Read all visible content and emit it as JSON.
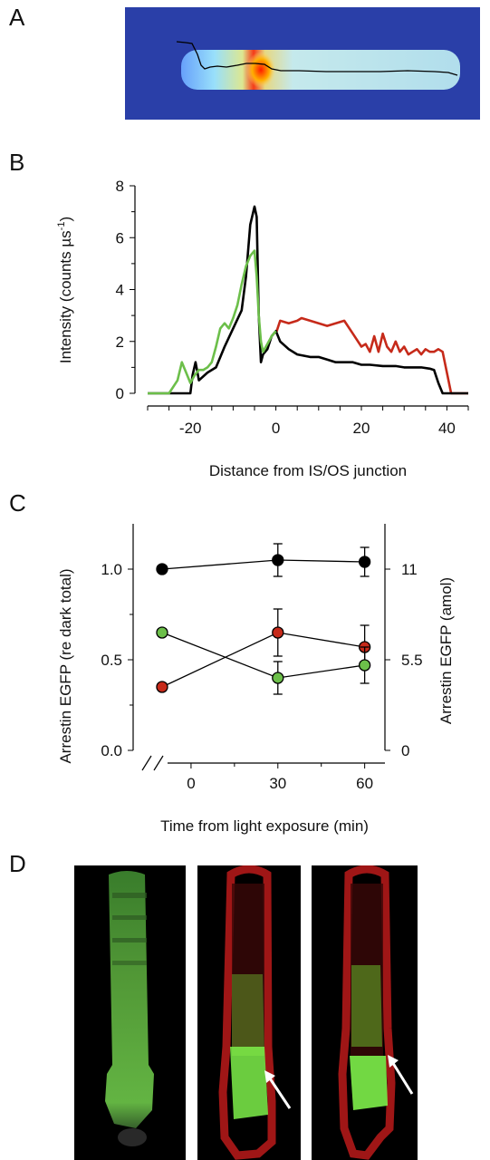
{
  "panels": {
    "a": "A",
    "b": "B",
    "c": "C",
    "d": "D"
  },
  "colors": {
    "black": "#000000",
    "red": "#c62a1a",
    "green": "#6cbf4a",
    "heat_background": "#2a3fa8",
    "micrograph_background": "#000000",
    "membrane_red": "#b01818",
    "arrestin_green": "#7ef04a"
  },
  "chart_data": [
    {
      "panel": "B",
      "type": "line",
      "xlabel": "Distance from IS/OS junction",
      "ylabel": "Intensity (counts µs",
      "ylabel_superscript": "-1",
      "ylabel_close": ")",
      "xlim": [
        -30,
        45
      ],
      "ylim": [
        0,
        8
      ],
      "xticks": [
        -20,
        0,
        20,
        40
      ],
      "yticks": [
        0,
        2,
        4,
        6,
        8
      ],
      "series": [
        {
          "color": "black",
          "x": [
            -30,
            -20,
            -19.5,
            -18.8,
            -18,
            -16,
            -14,
            -12,
            -10,
            -8,
            -7,
            -6,
            -5,
            -4.5,
            -4,
            -3.5,
            -3,
            -2,
            -1,
            0,
            1,
            3,
            5,
            8,
            10,
            12,
            14,
            16,
            18,
            20,
            22,
            25,
            28,
            30,
            32,
            34,
            36,
            37,
            38,
            39,
            40,
            45
          ],
          "y": [
            0,
            0,
            0.7,
            1.2,
            0.5,
            0.8,
            1.0,
            1.8,
            2.5,
            3.2,
            4.5,
            6.5,
            7.2,
            6.8,
            3.0,
            1.2,
            1.5,
            1.7,
            2.2,
            2.4,
            2.0,
            1.7,
            1.5,
            1.4,
            1.4,
            1.3,
            1.2,
            1.2,
            1.2,
            1.1,
            1.1,
            1.05,
            1.05,
            1.0,
            1.0,
            1.0,
            0.95,
            0.9,
            0.4,
            0,
            0,
            0
          ]
        },
        {
          "color": "red",
          "x": [
            0,
            1,
            3,
            5,
            6,
            8,
            10,
            12,
            14,
            16,
            18,
            20,
            21,
            22,
            23,
            24,
            25,
            26,
            27,
            28,
            29,
            30,
            31,
            32,
            33,
            34,
            35,
            36,
            37,
            38,
            39,
            40,
            41,
            45
          ],
          "y": [
            2.3,
            2.8,
            2.7,
            2.8,
            2.9,
            2.8,
            2.7,
            2.6,
            2.7,
            2.8,
            2.3,
            1.8,
            1.9,
            1.6,
            2.2,
            1.6,
            2.3,
            1.8,
            1.6,
            2.0,
            1.6,
            1.8,
            1.5,
            1.6,
            1.7,
            1.5,
            1.7,
            1.6,
            1.6,
            1.7,
            1.6,
            0.8,
            0,
            0
          ]
        },
        {
          "color": "green",
          "x": [
            -30,
            -25,
            -23,
            -22,
            -21,
            -20,
            -19,
            -18,
            -17,
            -16,
            -15,
            -14,
            -13,
            -12,
            -11,
            -10,
            -9,
            -8,
            -7,
            -6,
            -5,
            -4.5,
            -4,
            -3.5,
            -3,
            -2,
            -1,
            0
          ],
          "y": [
            0,
            0,
            0.5,
            1.2,
            0.8,
            0.4,
            0.7,
            0.9,
            0.9,
            1.0,
            1.2,
            1.8,
            2.5,
            2.7,
            2.5,
            2.9,
            3.4,
            4.2,
            4.9,
            5.3,
            5.5,
            4.5,
            3.0,
            2.0,
            1.6,
            1.9,
            2.2,
            2.4
          ]
        }
      ]
    },
    {
      "panel": "C",
      "type": "scatter",
      "xlabel": "Time from light exposure (min)",
      "ylabel": "Arrestin EGFP (re dark total)",
      "ylabel_right": "Arrestin EGFP (amol)",
      "xlim": [
        -15,
        67
      ],
      "ylim": [
        0,
        1.25
      ],
      "xticks": [
        0,
        30,
        60
      ],
      "yticks": [
        0.0,
        0.5,
        1.0
      ],
      "yticks_right": [
        {
          "label": "0",
          "value": 0.0
        },
        {
          "label": "5.5",
          "value": 0.5
        },
        {
          "label": "11",
          "value": 1.0
        }
      ],
      "axis_break": true,
      "series": [
        {
          "color": "black",
          "points": [
            {
              "x": -10,
              "y": 1.0,
              "err": 0
            },
            {
              "x": 30,
              "y": 1.05,
              "err": 0.09
            },
            {
              "x": 60,
              "y": 1.04,
              "err": 0.08
            }
          ]
        },
        {
          "color": "red",
          "points": [
            {
              "x": -10,
              "y": 0.35,
              "err": 0.02
            },
            {
              "x": 30,
              "y": 0.65,
              "err": 0.13
            },
            {
              "x": 60,
              "y": 0.57,
              "err": 0.12
            }
          ]
        },
        {
          "color": "green",
          "points": [
            {
              "x": -10,
              "y": 0.65,
              "err": 0.02
            },
            {
              "x": 30,
              "y": 0.4,
              "err": 0.09
            },
            {
              "x": 60,
              "y": 0.47,
              "err": 0.1
            }
          ]
        }
      ]
    }
  ]
}
